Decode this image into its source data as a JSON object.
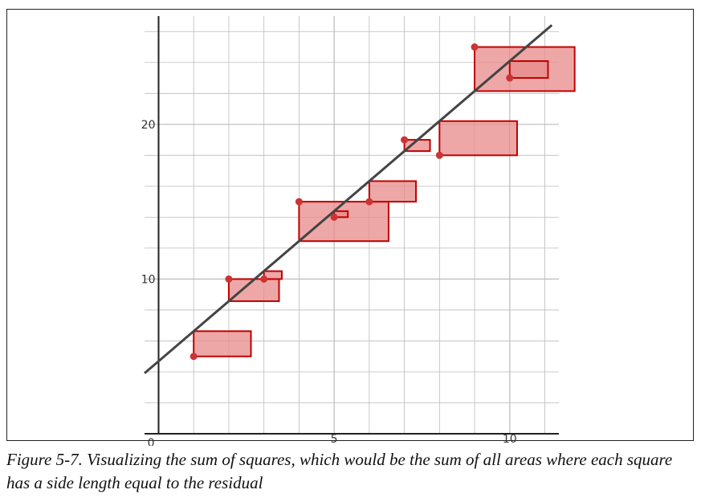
{
  "chart_data": {
    "type": "scatter",
    "title": "",
    "xlabel": "",
    "ylabel": "",
    "xlim": [
      -0.4,
      11.4
    ],
    "ylim": [
      0,
      27
    ],
    "grid": true,
    "x_ticks": [
      0,
      5,
      10
    ],
    "x_tick_labels": [
      "0",
      "5",
      "10"
    ],
    "y_ticks": [
      10,
      20
    ],
    "y_tick_labels": [
      "10",
      "20"
    ],
    "origin_label": "0",
    "points": [
      {
        "x": 1,
        "y": 5
      },
      {
        "x": 2,
        "y": 10
      },
      {
        "x": 3,
        "y": 10
      },
      {
        "x": 4,
        "y": 15
      },
      {
        "x": 5,
        "y": 14
      },
      {
        "x": 6,
        "y": 15
      },
      {
        "x": 7,
        "y": 19
      },
      {
        "x": 8,
        "y": 18
      },
      {
        "x": 9,
        "y": 25
      },
      {
        "x": 10,
        "y": 23
      }
    ],
    "fit_line": {
      "slope": 1.94,
      "intercept": 4.69
    },
    "colors": {
      "point": "#cc3333",
      "square_fill": "#e88a8a",
      "square_stroke": "#c00000",
      "line": "#444444",
      "grid": "#bbbbbb",
      "axis": "#222222"
    }
  },
  "caption": "Figure 5-7. Visualizing the sum of squares, which would be the sum of all areas where each square has a side length equal to the residual"
}
